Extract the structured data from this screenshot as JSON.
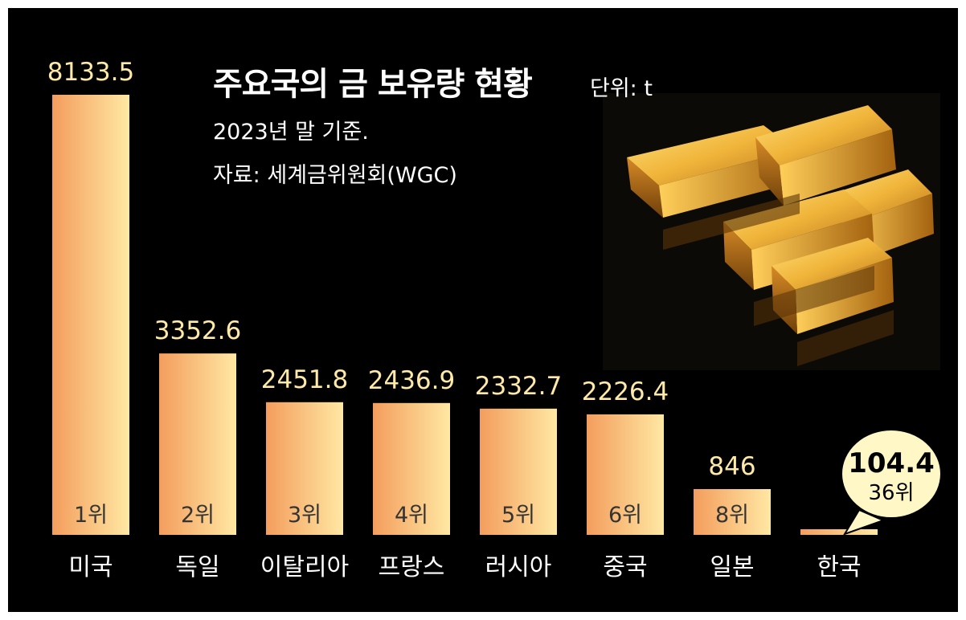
{
  "header": {
    "title": "주요국의 금 보유량 현황",
    "unit": "단위: t",
    "subtitle": "2023년 말 기준.",
    "source": "자료: 세계금위원회(WGC)"
  },
  "colors": {
    "background": "#000000",
    "value_label": "#ffe9a8",
    "category_label": "#ffffff",
    "bar_gradient": [
      "#f49d5d",
      "#ffe8a3"
    ],
    "callout": "#fff7c5"
  },
  "illustration": {
    "icon": "gold-bars-icon"
  },
  "chart_data": {
    "type": "bar",
    "title": "주요국의 금 보유량 현황",
    "subtitle": "2023년 말 기준.",
    "unit": "단위: t",
    "xlabel": "",
    "ylabel": "",
    "ylim": [
      0,
      8500
    ],
    "grid": false,
    "categories": [
      "미국",
      "독일",
      "이탈리아",
      "프랑스",
      "러시아",
      "중국",
      "일본",
      "한국"
    ],
    "values": [
      8133.5,
      3352.6,
      2451.8,
      2436.9,
      2332.7,
      2226.4,
      846,
      104.4
    ],
    "value_labels": [
      "8133.5",
      "3352.6",
      "2451.8",
      "2436.9",
      "2332.7",
      "2226.4",
      "846",
      "104.4"
    ],
    "ranks": [
      "1위",
      "2위",
      "3위",
      "4위",
      "5위",
      "6위",
      "8위",
      "36위"
    ],
    "highlight": {
      "category": "한국",
      "value": "104.4",
      "rank": "36위"
    }
  }
}
